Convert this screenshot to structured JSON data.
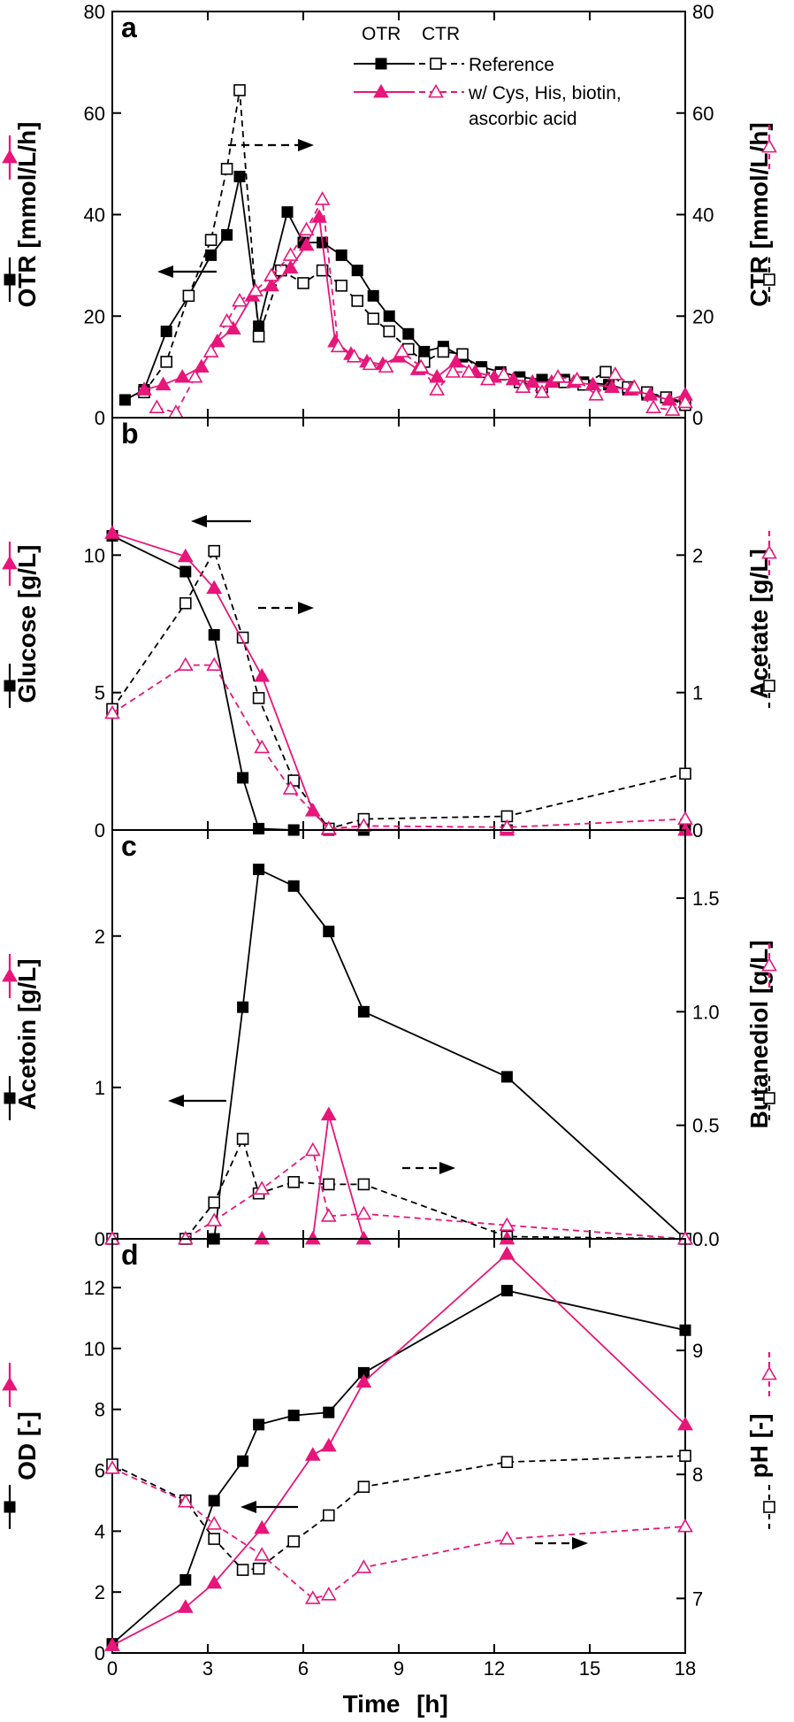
{
  "colors": {
    "reference": "#000000",
    "treatment": "#e8157a"
  },
  "xlabel": "Time",
  "xunit": "[h]",
  "legend": {
    "col_otr": "OTR",
    "col_ctr": "CTR",
    "reference": "Reference",
    "treatment_line1": "w/ Cys, His, biotin,",
    "treatment_line2": "ascorbic acid"
  },
  "chart_data": [
    {
      "type": "line",
      "panel": "a",
      "left_label": "OTR",
      "left_unit": "[mmol/L/h]",
      "left_ylim": [
        0,
        80
      ],
      "right_label": "CTR",
      "right_unit": "[mmol/L/h]",
      "right_ylim": [
        0,
        80
      ],
      "x_ticks": [
        0,
        3,
        6,
        9,
        12,
        15,
        18
      ],
      "left_ticks": [
        0,
        20,
        40,
        60,
        80
      ],
      "right_ticks": [
        0,
        20,
        40,
        60,
        80
      ],
      "series": [
        {
          "name": "OTR Reference",
          "axis": "left",
          "style": "solid",
          "marker": "filled-square",
          "color": "reference",
          "x": [
            0.4,
            1.0,
            1.7,
            2.4,
            3.1,
            3.6,
            4.0,
            4.6,
            5.5,
            6.0,
            6.6,
            7.2,
            7.7,
            8.2,
            8.7,
            9.3,
            9.8,
            10.4,
            11.0,
            11.6,
            12.2,
            12.8,
            13.5,
            14.2,
            14.8,
            15.6,
            16.2,
            16.8,
            17.4,
            18.0
          ],
          "y": [
            3.5,
            5.5,
            17,
            24,
            32,
            36,
            47.5,
            18,
            40.5,
            34.5,
            34.5,
            32,
            29,
            24,
            20,
            16.5,
            13,
            14,
            12,
            10,
            9,
            8,
            7.5,
            7.5,
            7,
            6.5,
            5.5,
            4.5,
            4,
            3
          ]
        },
        {
          "name": "CTR Reference",
          "axis": "right",
          "style": "dashed",
          "marker": "open-square",
          "color": "reference",
          "x": [
            1.0,
            1.7,
            2.4,
            3.1,
            3.6,
            4.0,
            4.6,
            5.3,
            6.0,
            6.6,
            7.2,
            7.7,
            8.2,
            8.7,
            9.3,
            9.8,
            10.4,
            11.0,
            11.6,
            12.2,
            12.8,
            13.5,
            14.2,
            14.8,
            15.5,
            16.2,
            16.8,
            17.4,
            18.0
          ],
          "y": [
            5,
            11,
            24,
            35,
            49,
            64.5,
            16,
            29,
            26.5,
            29,
            26,
            23,
            19.5,
            17,
            13.5,
            11,
            13,
            12.5,
            9,
            8.5,
            7,
            6,
            7,
            6.5,
            9,
            6,
            5,
            4,
            2.5
          ]
        },
        {
          "name": "OTR w/ Cys, His, biotin, ascorbic acid",
          "axis": "left",
          "style": "solid",
          "marker": "filled-triangle",
          "color": "treatment",
          "x": [
            1.0,
            1.6,
            2.2,
            2.8,
            3.3,
            3.8,
            4.4,
            5.0,
            5.6,
            6.1,
            6.5,
            7.0,
            7.5,
            8.0,
            8.5,
            9.0,
            9.6,
            10.2,
            10.8,
            11.4,
            12.0,
            12.6,
            13.2,
            13.8,
            14.5,
            15.1,
            15.7,
            16.3,
            16.9,
            17.5,
            18.0
          ],
          "y": [
            5.5,
            6.5,
            8,
            10,
            15,
            17.5,
            24,
            26,
            29.5,
            34,
            39.5,
            15,
            12.5,
            11,
            10.5,
            12,
            9.5,
            8,
            11,
            9,
            8,
            7.5,
            7,
            7,
            7,
            6.5,
            6,
            5.5,
            4.5,
            3.5,
            4.5
          ]
        },
        {
          "name": "CTR w/ Cys, His, biotin, ascorbic acid",
          "axis": "right",
          "style": "dashed",
          "marker": "open-triangle",
          "color": "treatment",
          "x": [
            1.4,
            2.0,
            2.6,
            3.1,
            3.6,
            4.0,
            4.5,
            5.0,
            5.6,
            6.1,
            6.6,
            7.1,
            7.6,
            8.1,
            8.6,
            9.1,
            9.7,
            10.2,
            10.7,
            11.2,
            11.8,
            12.3,
            12.9,
            13.5,
            14.0,
            14.6,
            15.2,
            15.8,
            16.4,
            17.0,
            17.6,
            18.0
          ],
          "y": [
            2,
            1,
            8,
            13,
            19,
            23,
            25,
            28,
            32,
            37,
            43,
            14,
            12,
            10.5,
            10,
            13,
            10,
            5.5,
            9,
            9,
            7.5,
            8.5,
            6,
            5,
            8,
            7.5,
            4.5,
            8.5,
            6,
            2,
            1.5,
            3
          ]
        }
      ]
    },
    {
      "type": "line",
      "panel": "b",
      "left_label": "Glucose",
      "left_unit": "[g/L]",
      "left_ylim": [
        0,
        15
      ],
      "right_label": "Acetate",
      "right_unit": "[g/L]",
      "right_ylim": [
        0,
        3
      ],
      "x_ticks": [
        0,
        3,
        6,
        9,
        12,
        15,
        18
      ],
      "left_ticks": [
        0,
        5,
        10
      ],
      "right_ticks": [
        0,
        1,
        2
      ],
      "series": [
        {
          "name": "Glucose Reference",
          "axis": "left",
          "style": "solid",
          "marker": "filled-square",
          "color": "reference",
          "x": [
            0,
            2.3,
            3.2,
            4.1,
            4.6,
            5.7,
            6.8,
            7.9,
            12.4,
            18.0
          ],
          "y": [
            10.7,
            9.4,
            7.1,
            1.9,
            0.05,
            0,
            0,
            0,
            0,
            0
          ]
        },
        {
          "name": "Acetate Reference",
          "axis": "right",
          "style": "dashed",
          "marker": "open-square",
          "color": "reference",
          "x": [
            0,
            2.3,
            3.2,
            4.1,
            4.6,
            5.7,
            6.8,
            7.9,
            12.4,
            18.0
          ],
          "y": [
            0.88,
            1.65,
            2.03,
            1.4,
            0.96,
            0.36,
            0.01,
            0.08,
            0.1,
            0.41
          ]
        },
        {
          "name": "Glucose w/ Cys, His, biotin, ascorbic acid",
          "axis": "left",
          "style": "solid",
          "marker": "filled-triangle",
          "color": "treatment",
          "x": [
            0,
            2.3,
            3.2,
            4.7,
            6.3,
            6.8,
            12.4,
            18.0
          ],
          "y": [
            10.8,
            9.95,
            8.8,
            5.6,
            0.7,
            0.02,
            0,
            0
          ]
        },
        {
          "name": "Acetate w/ Cys, His, biotin, ascorbic acid",
          "axis": "right",
          "style": "dashed",
          "marker": "open-triangle",
          "color": "treatment",
          "x": [
            0,
            2.3,
            3.2,
            4.7,
            5.6,
            6.8,
            7.9,
            12.4,
            18.0
          ],
          "y": [
            0.85,
            1.2,
            1.2,
            0.6,
            0.3,
            0.01,
            0.03,
            0.02,
            0.08
          ]
        }
      ]
    },
    {
      "type": "line",
      "panel": "c",
      "left_label": "Acetoin",
      "left_unit": "[g/L]",
      "left_ylim": [
        0,
        2.7
      ],
      "right_label": "Butanediol",
      "right_unit": "[g/L]",
      "right_ylim": [
        0,
        1.8
      ],
      "x_ticks": [
        0,
        3,
        6,
        9,
        12,
        15,
        18
      ],
      "left_ticks": [
        0,
        1,
        2
      ],
      "right_ticks": [
        0.0,
        0.5,
        1.0,
        1.5
      ],
      "left_tick_labels": [
        "0",
        "1",
        "2"
      ],
      "right_tick_labels": [
        "0.0",
        "0.5",
        "1.0",
        "1.5"
      ],
      "series": [
        {
          "name": "Acetoin Reference",
          "axis": "left",
          "style": "solid",
          "marker": "filled-square",
          "color": "reference",
          "x": [
            0,
            2.3,
            3.2,
            4.1,
            4.6,
            5.7,
            6.8,
            7.9,
            12.4,
            18.0
          ],
          "y": [
            0,
            0,
            0,
            1.53,
            2.44,
            2.33,
            2.03,
            1.5,
            1.07,
            0
          ]
        },
        {
          "name": "Butanediol Reference",
          "axis": "right",
          "style": "dashed",
          "marker": "open-square",
          "color": "reference",
          "x": [
            0,
            2.3,
            3.2,
            4.1,
            4.6,
            5.7,
            6.8,
            7.9,
            12.4,
            18.0
          ],
          "y": [
            0,
            0,
            0.16,
            0.44,
            0.2,
            0.25,
            0.24,
            0.24,
            0.01,
            0
          ]
        },
        {
          "name": "Acetoin w/ Cys, His, biotin, ascorbic acid",
          "axis": "left",
          "style": "solid",
          "marker": "filled-triangle",
          "color": "treatment",
          "x": [
            0,
            4.7,
            6.3,
            6.8,
            7.9,
            12.4,
            18.0
          ],
          "y": [
            0,
            0,
            0,
            0.82,
            0,
            0,
            0
          ]
        },
        {
          "name": "Butanediol w/ Cys, His, biotin, ascorbic acid",
          "axis": "right",
          "style": "dashed",
          "marker": "open-triangle",
          "color": "treatment",
          "x": [
            0,
            2.3,
            3.2,
            4.7,
            6.3,
            6.8,
            7.9,
            12.4,
            18.0
          ],
          "y": [
            0,
            0,
            0.08,
            0.22,
            0.39,
            0.1,
            0.11,
            0.06,
            0
          ]
        }
      ]
    },
    {
      "type": "line",
      "panel": "d",
      "left_label": "OD",
      "left_unit": "[-]",
      "left_ylim": [
        0,
        13.6
      ],
      "right_label": "pH",
      "right_unit": "[-]",
      "right_ylim": [
        6.56,
        9.9
      ],
      "x_ticks": [
        0,
        3,
        6,
        9,
        12,
        15,
        18
      ],
      "left_ticks": [
        0,
        2,
        4,
        6,
        8,
        10,
        12
      ],
      "right_ticks": [
        7,
        8,
        9
      ],
      "series": [
        {
          "name": "OD Reference",
          "axis": "left",
          "style": "solid",
          "marker": "filled-square",
          "color": "reference",
          "x": [
            0,
            2.3,
            3.2,
            4.1,
            4.6,
            5.7,
            6.8,
            7.9,
            12.4,
            18.0
          ],
          "y": [
            0.3,
            2.4,
            5.0,
            6.3,
            7.5,
            7.8,
            7.9,
            9.2,
            11.9,
            10.6
          ]
        },
        {
          "name": "pH Reference",
          "axis": "right",
          "style": "dashed",
          "marker": "open-square",
          "color": "reference",
          "x": [
            0,
            2.3,
            3.2,
            4.1,
            4.6,
            5.7,
            6.8,
            7.9,
            12.4,
            18.0
          ],
          "y": [
            8.08,
            7.79,
            7.48,
            7.23,
            7.24,
            7.46,
            7.67,
            7.9,
            8.1,
            8.15
          ]
        },
        {
          "name": "OD w/ Cys, His, biotin, ascorbic acid",
          "axis": "left",
          "style": "solid",
          "marker": "filled-triangle",
          "color": "treatment",
          "x": [
            0,
            2.3,
            3.2,
            4.7,
            6.3,
            6.8,
            7.9,
            12.4,
            18.0
          ],
          "y": [
            0.25,
            1.5,
            2.3,
            4.1,
            6.5,
            6.8,
            8.9,
            13.1,
            7.5
          ]
        },
        {
          "name": "pH w/ Cys, His, biotin, ascorbic acid",
          "axis": "right",
          "style": "dashed",
          "marker": "open-triangle",
          "color": "treatment",
          "x": [
            0,
            2.3,
            3.2,
            4.7,
            6.3,
            6.8,
            7.9,
            12.4,
            18.0
          ],
          "y": [
            8.05,
            7.78,
            7.6,
            7.35,
            7.0,
            7.03,
            7.25,
            7.48,
            7.58
          ]
        }
      ]
    }
  ]
}
